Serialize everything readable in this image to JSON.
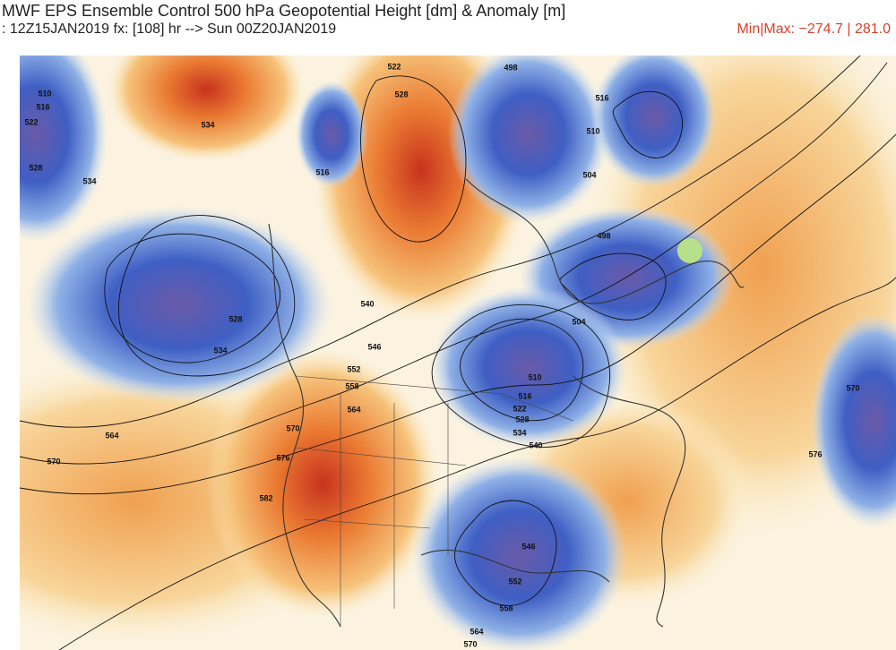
{
  "header": {
    "title": "MWF EPS Ensemble Control 500 hPa Geopotential Height [dm] & Anomaly [m]",
    "subtitle": ": 12Z15JAN2019 fx: [108] hr --> Sun 00Z20JAN2019",
    "minmax": "Min|Max: −274.7 | 281.0"
  },
  "map": {
    "contour_labels": [
      510,
      516,
      522,
      528,
      534,
      534,
      522,
      528,
      498,
      516,
      510,
      504,
      516,
      498,
      528,
      534,
      540,
      546,
      552,
      558,
      564,
      570,
      576,
      582,
      564,
      570,
      504,
      510,
      516,
      522,
      528,
      534,
      540,
      546,
      552,
      558,
      564,
      570,
      570,
      576
    ]
  }
}
